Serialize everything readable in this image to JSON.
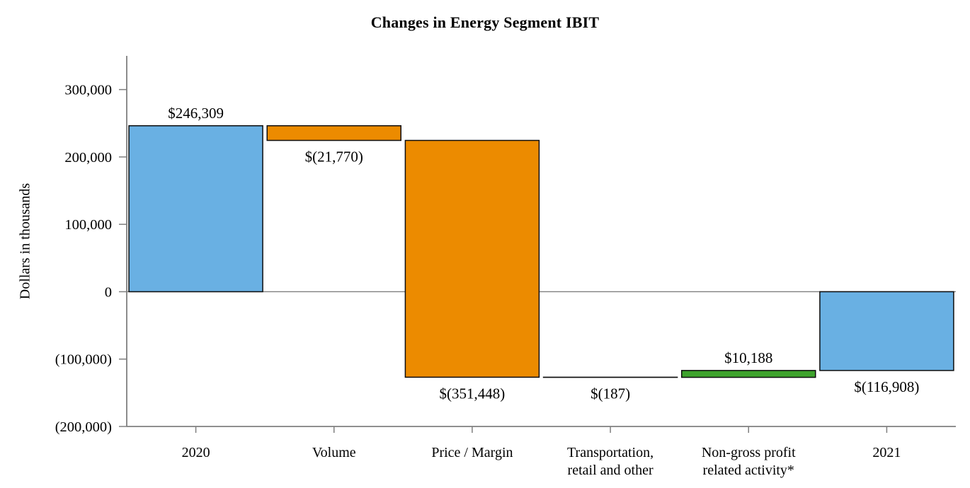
{
  "chart_data": {
    "type": "bar",
    "subtype": "waterfall",
    "title": "Changes in Energy Segment IBIT",
    "xlabel": "",
    "ylabel": "Dollars in thousands",
    "ylim": [
      -200000,
      350000
    ],
    "ytick_interval": 100000,
    "grid": "zero-line-only",
    "legend_position": "none",
    "y_ticks": [
      {
        "value": 300000,
        "label": "300,000"
      },
      {
        "value": 200000,
        "label": "200,000"
      },
      {
        "value": 100000,
        "label": "100,000"
      },
      {
        "value": 0,
        "label": "0"
      },
      {
        "value": -100000,
        "label": "(100,000)"
      },
      {
        "value": -200000,
        "label": "(200,000)"
      }
    ],
    "bars": [
      {
        "category_lines": [
          "2020"
        ],
        "start": 0,
        "end": 246309,
        "value": 246309,
        "label": "$246,309",
        "role": "total"
      },
      {
        "category_lines": [
          "Volume"
        ],
        "start": 246309,
        "end": 224539,
        "value": -21770,
        "label": "$(21,770)",
        "role": "decrease"
      },
      {
        "category_lines": [
          "Price / Margin"
        ],
        "start": 224539,
        "end": -126909,
        "value": -351448,
        "label": "$(351,448)",
        "role": "decrease"
      },
      {
        "category_lines": [
          "Transportation,",
          "retail and other"
        ],
        "start": -126909,
        "end": -127096,
        "value": -187,
        "label": "$(187)",
        "role": "decrease"
      },
      {
        "category_lines": [
          "Non-gross profit",
          "related activity*"
        ],
        "start": -127096,
        "end": -116908,
        "value": 10188,
        "label": "$10,188",
        "role": "increase"
      },
      {
        "category_lines": [
          "2021"
        ],
        "start": 0,
        "end": -116908,
        "value": -116908,
        "label": "$(116,908)",
        "role": "total"
      }
    ],
    "colors": {
      "total": "#69B0E3",
      "decrease": "#EC8B00",
      "increase": "#3EA32D",
      "bar_border": "#0D0D0D",
      "axis": "#7F7F7F",
      "zero_line": "#7F7F7F",
      "text": "#000000"
    }
  }
}
